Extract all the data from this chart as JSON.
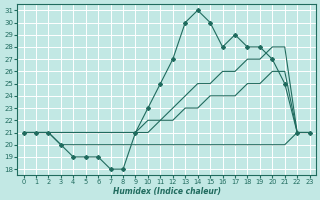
{
  "xlabel": "Humidex (Indice chaleur)",
  "xlim": [
    -0.5,
    23.5
  ],
  "ylim": [
    17.5,
    31.5
  ],
  "yticks": [
    18,
    19,
    20,
    21,
    22,
    23,
    24,
    25,
    26,
    27,
    28,
    29,
    30,
    31
  ],
  "xticks": [
    0,
    1,
    2,
    3,
    4,
    5,
    6,
    7,
    8,
    9,
    10,
    11,
    12,
    13,
    14,
    15,
    16,
    17,
    18,
    19,
    20,
    21,
    22,
    23
  ],
  "bg_color": "#c2e8e4",
  "grid_color": "#ffffff",
  "line_color": "#206b5e",
  "line1_x": [
    0,
    1,
    2,
    3,
    4,
    5,
    6,
    7,
    8,
    9,
    10,
    11,
    12,
    13,
    14,
    15,
    16,
    17,
    18,
    19,
    20,
    21,
    22,
    23
  ],
  "line1_y": [
    21,
    21,
    21,
    20,
    19,
    19,
    19,
    18,
    18,
    21,
    23,
    25,
    27,
    30,
    31,
    30,
    28,
    29,
    28,
    28,
    27,
    25,
    21,
    21
  ],
  "line2_x": [
    0,
    1,
    2,
    3,
    4,
    5,
    6,
    7,
    8,
    9,
    10,
    11,
    12,
    13,
    14,
    15,
    16,
    17,
    18,
    19,
    20,
    21,
    22,
    23
  ],
  "line2_y": [
    21,
    21,
    21,
    21,
    21,
    21,
    21,
    21,
    21,
    21,
    22,
    22,
    23,
    24,
    25,
    25,
    26,
    26,
    27,
    27,
    28,
    28,
    21,
    21
  ],
  "line3_x": [
    0,
    1,
    2,
    3,
    4,
    5,
    6,
    7,
    8,
    9,
    10,
    11,
    12,
    13,
    14,
    15,
    16,
    17,
    18,
    19,
    20,
    21,
    22,
    23
  ],
  "line3_y": [
    21,
    21,
    21,
    21,
    21,
    21,
    21,
    21,
    21,
    21,
    21,
    22,
    22,
    23,
    23,
    24,
    24,
    24,
    25,
    25,
    26,
    26,
    21,
    21
  ],
  "line4_x": [
    0,
    1,
    2,
    3,
    4,
    5,
    6,
    7,
    8,
    9,
    10,
    11,
    12,
    13,
    14,
    15,
    16,
    17,
    18,
    19,
    20,
    21,
    22,
    23
  ],
  "line4_y": [
    21,
    21,
    21,
    20,
    20,
    20,
    20,
    20,
    20,
    20,
    20,
    20,
    20,
    20,
    20,
    20,
    20,
    20,
    20,
    20,
    20,
    20,
    21,
    21
  ]
}
